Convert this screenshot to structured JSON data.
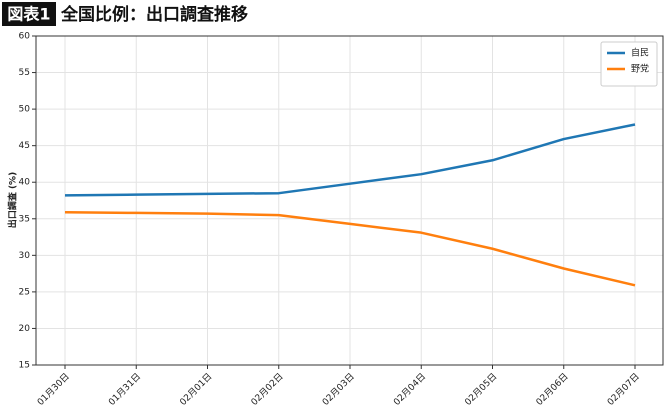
{
  "chart_data": {
    "type": "line",
    "badge": "図表1",
    "title": "全国比例：出口調査推移",
    "ylabel": "出口調査 (%)",
    "categories": [
      "01月30日",
      "01月31日",
      "02月01日",
      "02月02日",
      "02月03日",
      "02月04日",
      "02月05日",
      "02月06日",
      "02月07日"
    ],
    "series": [
      {
        "name": "自民",
        "color": "#1f77b4",
        "values": [
          38.2,
          38.3,
          38.4,
          38.5,
          39.8,
          41.1,
          43.0,
          45.9,
          47.9
        ]
      },
      {
        "name": "野党",
        "color": "#ff7f0e",
        "values": [
          35.9,
          35.8,
          35.7,
          35.5,
          34.3,
          33.1,
          30.9,
          28.2,
          25.9
        ]
      }
    ],
    "ylim": [
      15,
      60
    ],
    "yticks": [
      15,
      20,
      25,
      30,
      35,
      40,
      45,
      50,
      55,
      60
    ],
    "grid": true,
    "legend": "upper right"
  }
}
